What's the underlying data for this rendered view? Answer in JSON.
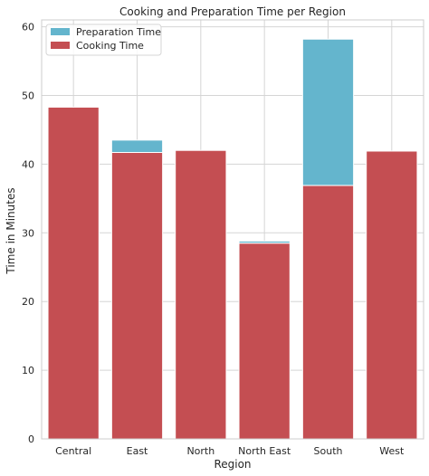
{
  "chart_data": {
    "type": "bar",
    "stacked": true,
    "title": "Cooking and Preparation Time per Region",
    "xlabel": "Region",
    "ylabel": "Time in Minutes",
    "categories": [
      "Central",
      "East",
      "North",
      "North East",
      "South",
      "West"
    ],
    "series": [
      {
        "name": "Cooking Time",
        "color": "#c44e52",
        "values": [
          48.3,
          41.7,
          42.0,
          28.5,
          36.9,
          41.9
        ]
      },
      {
        "name": "Preparation Time",
        "color": "#64b5cd",
        "values": [
          0.0,
          1.8,
          0.0,
          0.3,
          21.3,
          0.0
        ]
      }
    ],
    "ylim": [
      0,
      61
    ],
    "yticks": [
      0,
      10,
      20,
      30,
      40,
      50,
      60
    ],
    "grid": true,
    "legend_position": "top-left"
  }
}
